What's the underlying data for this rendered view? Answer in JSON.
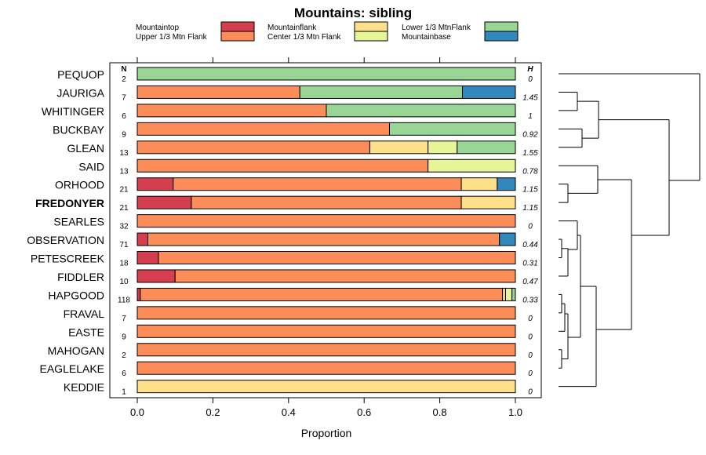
{
  "chart_data": {
    "type": "bar",
    "stacked": true,
    "orientation": "horizontal",
    "title": "Mountains: sibling",
    "xlabel": "Proportion",
    "xlim": [
      0,
      1
    ],
    "xticks": [
      "0.0",
      "0.2",
      "0.4",
      "0.6",
      "0.8",
      "1.0"
    ],
    "xtick_values": [
      0,
      0.2,
      0.4,
      0.6,
      0.8,
      1.0
    ],
    "n_header": "N",
    "h_header": "H",
    "highlight": "FREDONYER",
    "legend": [
      {
        "name": "Mountaintop",
        "color": "#d53e4f"
      },
      {
        "name": "Upper 1/3 Mtn Flank",
        "color": "#fc8d59"
      },
      {
        "name": "Mountainflank",
        "color": "#fee08b"
      },
      {
        "name": "Center 1/3 Mtn Flank",
        "color": "#e6f598"
      },
      {
        "name": "Lower 1/3 MtnFlank",
        "color": "#99d594"
      },
      {
        "name": "Mountainbase",
        "color": "#3288bd"
      }
    ],
    "series_order": [
      "Mountaintop",
      "Upper 1/3 Mtn Flank",
      "Mountainflank",
      "Center 1/3 Mtn Flank",
      "Lower 1/3 MtnFlank",
      "Mountainbase"
    ],
    "categories": [
      "PEQUOP",
      "JAURIGA",
      "WHITINGER",
      "BUCKBAY",
      "GLEAN",
      "SAID",
      "ORHOOD",
      "FREDONYER",
      "SEARLES",
      "OBSERVATION",
      "PETESCREEK",
      "FIDDLER",
      "HAPGOOD",
      "FRAVAL",
      "EASTE",
      "MAHOGAN",
      "EAGLELAKE",
      "KEDDIE"
    ],
    "n": [
      "2",
      "7",
      "6",
      "9",
      "13",
      "13",
      "21",
      "21",
      "32",
      "71",
      "18",
      "10",
      "118",
      "7",
      "9",
      "2",
      "6",
      "1"
    ],
    "h": [
      "0",
      "1.45",
      "1",
      "0.92",
      "1.55",
      "0.78",
      "1.15",
      "1.15",
      "0",
      "0.44",
      "0.31",
      "0.47",
      "0.33",
      "0",
      "0",
      "0",
      "0",
      "0"
    ],
    "values": [
      [
        0,
        0,
        0,
        0,
        1,
        0
      ],
      [
        0,
        0.43,
        0,
        0,
        0.43,
        0.14
      ],
      [
        0,
        0.5,
        0,
        0,
        0.5,
        0
      ],
      [
        0,
        0.667,
        0,
        0,
        0.333,
        0
      ],
      [
        0,
        0.615,
        0.154,
        0.077,
        0.154,
        0
      ],
      [
        0,
        0.769,
        0,
        0.231,
        0,
        0
      ],
      [
        0.095,
        0.762,
        0.095,
        0,
        0,
        0.048
      ],
      [
        0.143,
        0.714,
        0.143,
        0,
        0,
        0
      ],
      [
        0,
        1,
        0,
        0,
        0,
        0
      ],
      [
        0.028,
        0.93,
        0,
        0,
        0,
        0.042
      ],
      [
        0.056,
        0.944,
        0,
        0,
        0,
        0
      ],
      [
        0.1,
        0.9,
        0,
        0,
        0,
        0
      ],
      [
        0.008,
        0.958,
        0.008,
        0.017,
        0.009,
        0
      ],
      [
        0,
        1,
        0,
        0,
        0,
        0
      ],
      [
        0,
        1,
        0,
        0,
        0,
        0
      ],
      [
        0,
        1,
        0,
        0,
        0,
        0
      ],
      [
        0,
        1,
        0,
        0,
        0,
        0
      ],
      [
        0,
        0,
        1,
        0,
        0,
        0
      ]
    ],
    "dendrogram": "hierarchical clustering of rows (drawn on right)"
  }
}
